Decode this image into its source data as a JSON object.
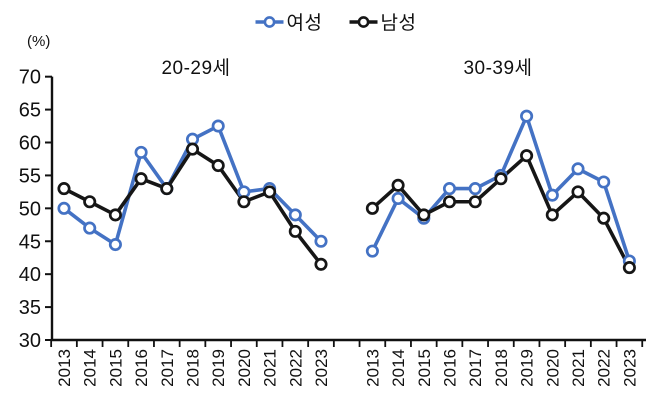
{
  "header": {
    "unit_label": "(%)",
    "legend": [
      {
        "name": "여성",
        "color": "#4472C4"
      },
      {
        "name": "남성",
        "color": "#161616"
      }
    ]
  },
  "chart_data": {
    "type": "line",
    "unit": "%",
    "ylabel": "(%)",
    "ylim": [
      30,
      70
    ],
    "yticks": [
      30,
      35,
      40,
      45,
      50,
      55,
      60,
      65,
      70
    ],
    "grid": false,
    "legend_position": "top-center",
    "marker": "open-circle",
    "panels": [
      {
        "title": "20-29세",
        "categories": [
          "2013",
          "2014",
          "2015",
          "2016",
          "2017",
          "2018",
          "2019",
          "2020",
          "2021",
          "2022",
          "2023"
        ],
        "series": [
          {
            "name": "여성",
            "color": "#4472C4",
            "values": [
              50,
              47,
              44.5,
              58.5,
              53,
              60.5,
              62.5,
              52.5,
              53,
              49,
              45
            ]
          },
          {
            "name": "남성",
            "color": "#161616",
            "values": [
              53,
              51,
              49,
              54.5,
              53,
              59,
              56.5,
              51,
              52.5,
              46.5,
              41.5
            ]
          }
        ]
      },
      {
        "title": "30-39세",
        "categories": [
          "2013",
          "2014",
          "2015",
          "2016",
          "2017",
          "2018",
          "2019",
          "2020",
          "2021",
          "2022",
          "2023"
        ],
        "series": [
          {
            "name": "여성",
            "color": "#4472C4",
            "values": [
              43.5,
              51.5,
              48.5,
              53,
              53,
              55,
              64,
              52,
              56,
              54,
              42
            ]
          },
          {
            "name": "남성",
            "color": "#161616",
            "values": [
              50,
              53.5,
              49,
              51,
              51,
              54.5,
              58,
              49,
              52.5,
              48.5,
              41
            ]
          }
        ]
      }
    ]
  }
}
